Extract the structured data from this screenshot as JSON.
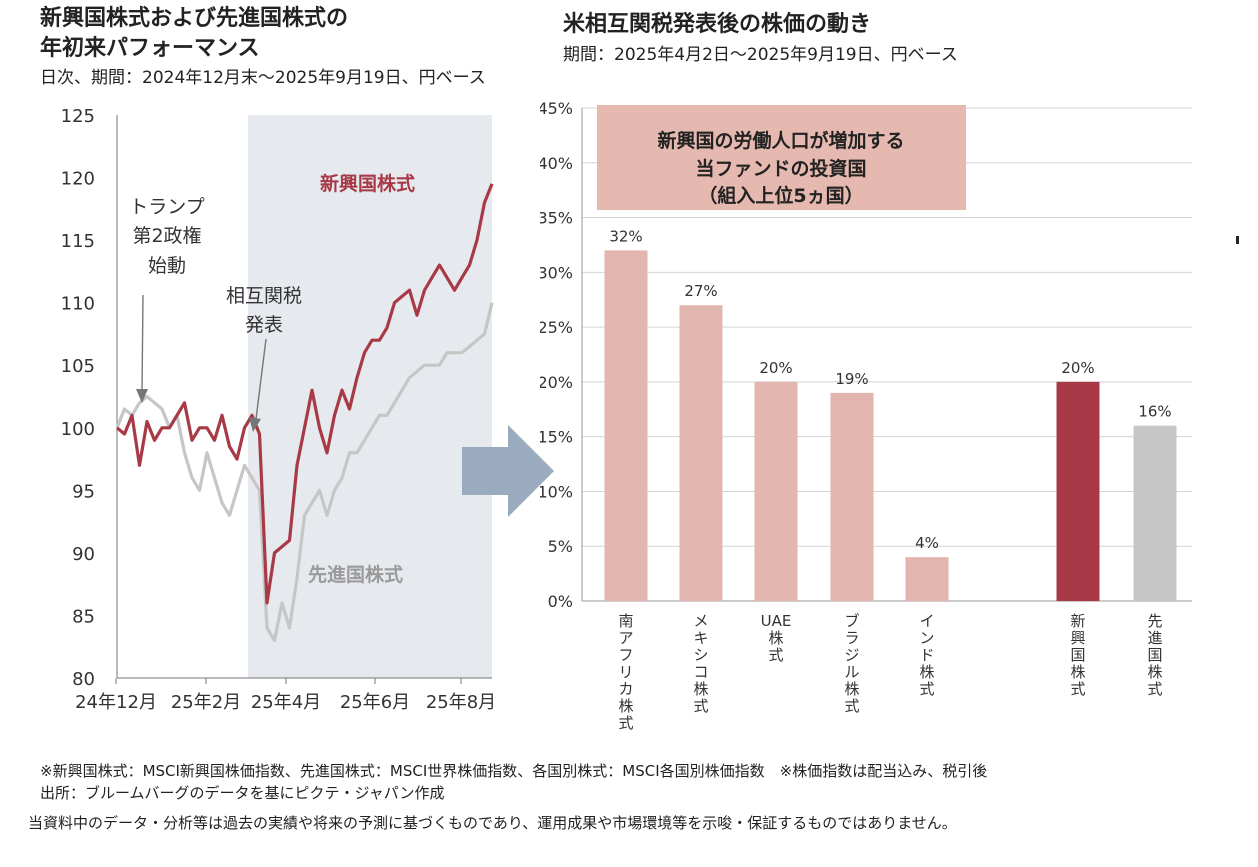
{
  "left": {
    "title_line1": "新興国株式および先進国株式の",
    "title_line2": "年初来パフォーマンス",
    "subtitle": "日次、期間：2024年12月末～2025年9月19日、円ベース"
  },
  "right": {
    "title": "米相互関税発表後の株価の動き",
    "subtitle": "期間：2025年4月2日～2025年9月19日、円ベース",
    "box_lines": [
      "新興国の労働人口が増加する",
      "当ファンドの投資国",
      "（組入上位5ヵ国）"
    ]
  },
  "notes": {
    "line1": "※新興国株式：MSCI新興国株価指数、先進国株式：MSCI世界株価指数、各国別株式：MSCI各国別株価指数　※株価指数は配当込み、税引後",
    "line2": "出所：ブルームバーグのデータを基にピクテ・ジャパン作成",
    "disclaimer": "当資料中のデータ・分析等は過去の実績や将来の予測に基づくものであり、運用成果や市場環境等を示唆・保証するものではありません。"
  },
  "colors": {
    "emerging": "#a83a47",
    "developed": "#c6c6c6",
    "country_bar": "#e2b5ae",
    "shade": "#e6e9ee",
    "arrow": "#9aabbf",
    "box": "#e6b9b0"
  },
  "chart_data": [
    {
      "type": "line",
      "ylim": [
        80,
        125
      ],
      "yticks": [
        "125",
        "120",
        "115",
        "110",
        "105",
        "100",
        "95",
        "90",
        "85",
        "80"
      ],
      "xtick_labels": [
        "24年12月",
        "25年2月",
        "25年4月",
        "25年6月",
        "25年8月"
      ],
      "grid": false,
      "shaded_period": "25年4月2日以降",
      "annotations": {
        "trump": [
          "トランプ",
          "第2政権",
          "始動"
        ],
        "tariff": [
          "相互関税",
          "発表"
        ]
      },
      "series": [
        {
          "name": "新興国株式",
          "x": [
            0,
            2,
            4,
            6,
            8,
            10,
            12,
            14,
            16,
            18,
            20,
            22,
            24,
            26,
            28,
            30,
            32,
            34,
            36,
            38,
            40,
            42,
            44,
            46,
            48,
            50,
            52,
            54,
            56,
            58,
            60,
            62,
            64,
            66,
            68,
            70,
            72,
            74,
            76,
            78,
            80,
            82,
            84,
            86,
            88,
            90,
            92,
            94,
            96,
            98,
            100
          ],
          "values": [
            100,
            99.5,
            101,
            97,
            100.5,
            99,
            100,
            100,
            101,
            102,
            99,
            100,
            100,
            99,
            101,
            98.5,
            97.5,
            100,
            101,
            99.5,
            86,
            90,
            90.5,
            91,
            97,
            100,
            103,
            100,
            98,
            101,
            103,
            101.5,
            104,
            106,
            107,
            107,
            108,
            110,
            110.5,
            111,
            109,
            111,
            112,
            113,
            112,
            111,
            112,
            113,
            115,
            118,
            119.5
          ]
        },
        {
          "name": "先進国株式",
          "x": [
            0,
            2,
            4,
            6,
            8,
            10,
            12,
            14,
            16,
            18,
            20,
            22,
            24,
            26,
            28,
            30,
            32,
            34,
            36,
            38,
            40,
            42,
            44,
            46,
            48,
            50,
            52,
            54,
            56,
            58,
            60,
            62,
            64,
            66,
            68,
            70,
            72,
            74,
            76,
            78,
            80,
            82,
            84,
            86,
            88,
            90,
            92,
            94,
            96,
            98,
            100
          ],
          "values": [
            100,
            101.5,
            101,
            102,
            102.5,
            102,
            101.5,
            100,
            101,
            98,
            96,
            95,
            98,
            96,
            94,
            93,
            95,
            97,
            96,
            95,
            84,
            83,
            86,
            84,
            88,
            93,
            94,
            95,
            93,
            95,
            96,
            98,
            98,
            99,
            100,
            101,
            101,
            102,
            103,
            104,
            104.5,
            105,
            105,
            105,
            106,
            106,
            106,
            106.5,
            107,
            107.5,
            110
          ]
        }
      ]
    },
    {
      "type": "bar",
      "ylim": [
        0,
        45
      ],
      "yticks": [
        "0%",
        "5%",
        "10%",
        "15%",
        "20%",
        "25%",
        "30%",
        "35%",
        "40%",
        "45%"
      ],
      "grid": true,
      "categories": [
        "南アフリカ株式",
        "メキシコ株式",
        "UAE株式",
        "ブラジル株式",
        "インド株式",
        "新興国株式",
        "先進国株式"
      ],
      "values": [
        32,
        27,
        20,
        19,
        4,
        20,
        16
      ],
      "value_labels": [
        "32%",
        "27%",
        "20%",
        "19%",
        "4%",
        "20%",
        "16%"
      ]
    }
  ]
}
